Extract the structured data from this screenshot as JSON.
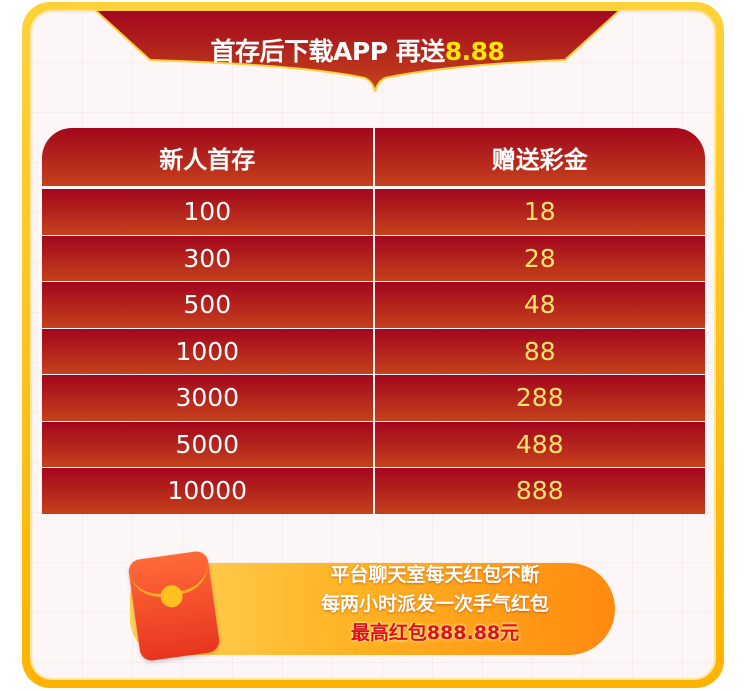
{
  "banner": {
    "title": "首存后下载APP 再送",
    "highlight": "8.88"
  },
  "table": {
    "headers": [
      "新人首存",
      "赠送彩金"
    ],
    "rows": [
      [
        "100",
        "18"
      ],
      [
        "300",
        "28"
      ],
      [
        "500",
        "48"
      ],
      [
        "1000",
        "88"
      ],
      [
        "3000",
        "288"
      ],
      [
        "5000",
        "488"
      ],
      [
        "10000",
        "888"
      ]
    ]
  },
  "promo": {
    "line1": "平台聊天室每天红包不断",
    "line2": "每两小时派发一次手气红包",
    "line3": "最高红包888.88元"
  },
  "icons": {
    "envelope": "red-envelope-icon"
  },
  "colors": {
    "frame": "#ffc21a",
    "row": "#a2061d",
    "bonus": "#ffe16b",
    "highlight": "#ffe600"
  }
}
